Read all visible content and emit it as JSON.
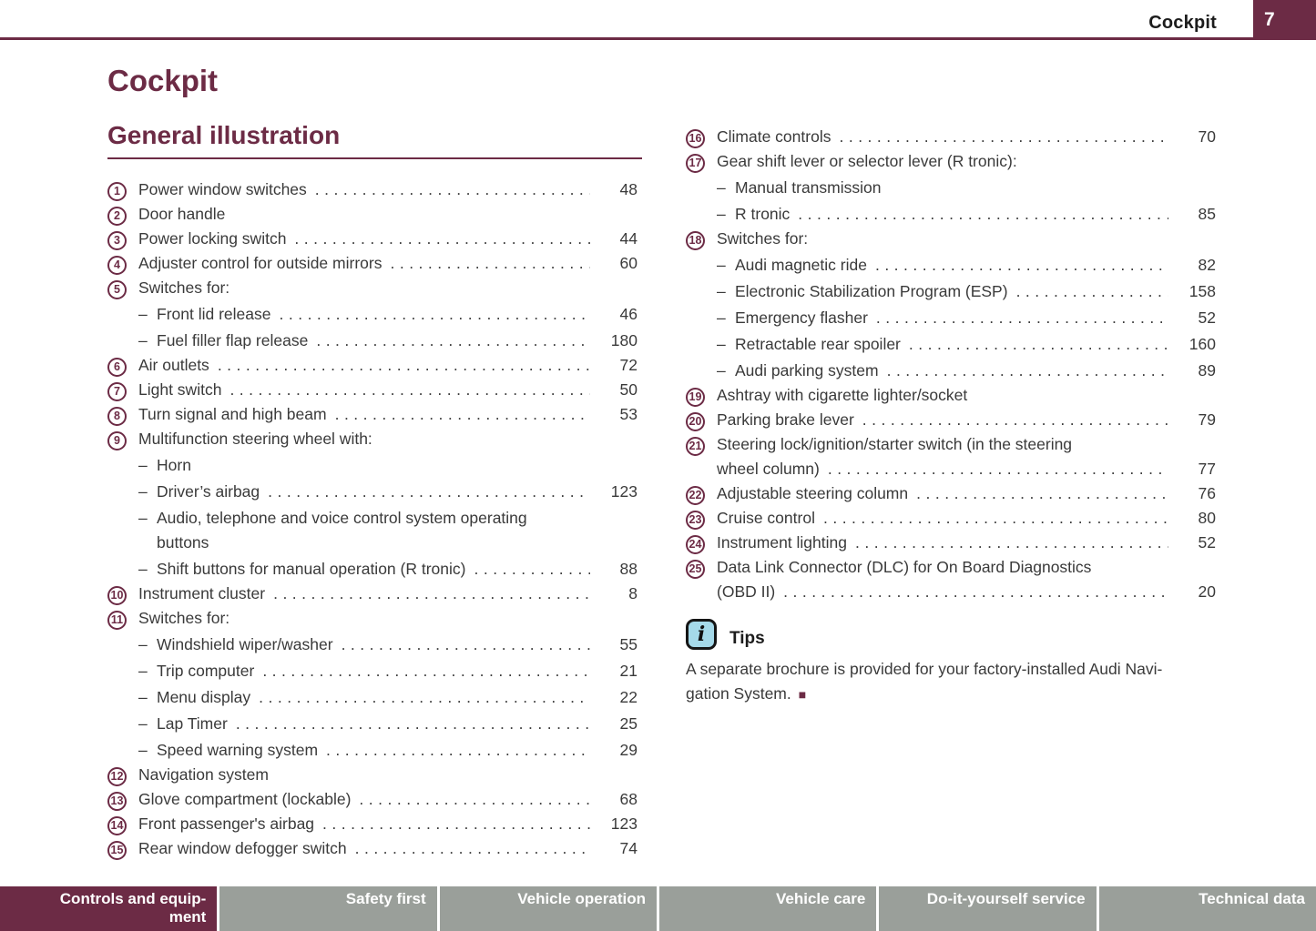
{
  "colors": {
    "maroon": "#6c2b45",
    "text_dark": "#3a3a3a",
    "footer_gray": "#9a9f9a",
    "tips_icon_bg": "#a5d9e9"
  },
  "header": {
    "section_title": "Cockpit",
    "page_number": "7"
  },
  "titles": {
    "page_heading": "Cockpit",
    "section_heading": "General illustration"
  },
  "toc": {
    "left": [
      {
        "num": "1",
        "text": "Power window switches",
        "page": "48"
      },
      {
        "num": "2",
        "text": "Door handle",
        "page": null
      },
      {
        "num": "3",
        "text": "Power locking switch",
        "page": "44"
      },
      {
        "num": "4",
        "text": "Adjuster control for outside mirrors",
        "page": "60"
      },
      {
        "num": "5",
        "text": "Switches for:",
        "page": null
      },
      {
        "dash": true,
        "text": "Front lid release",
        "page": "46"
      },
      {
        "dash": true,
        "text": "Fuel filler flap release",
        "page": "180"
      },
      {
        "num": "6",
        "text": "Air outlets",
        "page": "72"
      },
      {
        "num": "7",
        "text": "Light switch",
        "page": "50"
      },
      {
        "num": "8",
        "text": "Turn signal and high beam",
        "page": "53"
      },
      {
        "num": "9",
        "text": "Multifunction steering wheel with:",
        "page": null
      },
      {
        "dash": true,
        "text": "Horn",
        "page": null
      },
      {
        "dash": true,
        "text": "Driver’s airbag",
        "page": "123"
      },
      {
        "dash": true,
        "text": "Audio, telephone and voice control system operating",
        "page": null
      },
      {
        "cont": 1,
        "text": "buttons",
        "page": null
      },
      {
        "dash": true,
        "text": "Shift buttons for manual operation (R tronic)",
        "page": "88"
      },
      {
        "num": "10",
        "text": "Instrument cluster",
        "page": "8"
      },
      {
        "num": "11",
        "text": "Switches for:",
        "page": null
      },
      {
        "dash": true,
        "text": "Windshield wiper/washer",
        "page": "55"
      },
      {
        "dash": true,
        "text": "Trip computer",
        "page": "21"
      },
      {
        "dash": true,
        "text": "Menu display",
        "page": "22"
      },
      {
        "dash": true,
        "text": "Lap Timer",
        "page": "25"
      },
      {
        "dash": true,
        "text": "Speed warning system",
        "page": "29"
      },
      {
        "num": "12",
        "text": "Navigation system",
        "page": null
      },
      {
        "num": "13",
        "text": "Glove compartment (lockable)",
        "page": "68"
      },
      {
        "num": "14",
        "text": "Front passenger's airbag",
        "page": "123"
      },
      {
        "num": "15",
        "text": "Rear window defogger switch",
        "page": "74"
      }
    ],
    "right": [
      {
        "num": "16",
        "text": "Climate controls",
        "page": "70"
      },
      {
        "num": "17",
        "text": "Gear shift lever or selector lever (R tronic):",
        "page": null
      },
      {
        "dash": true,
        "text": "Manual transmission",
        "page": null
      },
      {
        "dash": true,
        "text": "R tronic",
        "page": "85"
      },
      {
        "num": "18",
        "text": "Switches for:",
        "page": null
      },
      {
        "dash": true,
        "text": "Audi magnetic ride",
        "page": "82"
      },
      {
        "dash": true,
        "text": "Electronic Stabilization Program (ESP)",
        "page": "158"
      },
      {
        "dash": true,
        "text": "Emergency flasher",
        "page": "52"
      },
      {
        "dash": true,
        "text": "Retractable rear spoiler",
        "page": "160"
      },
      {
        "dash": true,
        "text": "Audi parking system",
        "page": "89"
      },
      {
        "num": "19",
        "text": "Ashtray with cigarette lighter/socket",
        "page": null
      },
      {
        "num": "20",
        "text": "Parking brake lever",
        "page": "79"
      },
      {
        "num": "21",
        "text": "Steering lock/ignition/starter switch (in the steering",
        "page": null
      },
      {
        "cont": 0,
        "text": "wheel column)",
        "page": "77"
      },
      {
        "num": "22",
        "text": "Adjustable steering column",
        "page": "76"
      },
      {
        "num": "23",
        "text": "Cruise control",
        "page": "80"
      },
      {
        "num": "24",
        "text": "Instrument lighting",
        "page": "52"
      },
      {
        "num": "25",
        "text": "Data Link Connector (DLC) for On Board Diagnostics",
        "page": null
      },
      {
        "cont": 0,
        "text": "(OBD II)",
        "page": "20"
      }
    ]
  },
  "tips": {
    "title": "Tips",
    "icon": "info-icon",
    "lines": [
      "A separate brochure is provided for your factory-installed Audi Navi-",
      "gation System."
    ],
    "end_marker": "■"
  },
  "footer": {
    "tabs": [
      {
        "lines": [
          "Controls and equip-",
          "ment"
        ],
        "active": true
      },
      {
        "lines": [
          "Safety first"
        ],
        "active": false
      },
      {
        "lines": [
          "Vehicle operation"
        ],
        "active": false
      },
      {
        "lines": [
          "Vehicle care"
        ],
        "active": false
      },
      {
        "lines": [
          "Do-it-yourself service"
        ],
        "active": false
      },
      {
        "lines": [
          "Technical data"
        ],
        "active": false
      }
    ]
  }
}
